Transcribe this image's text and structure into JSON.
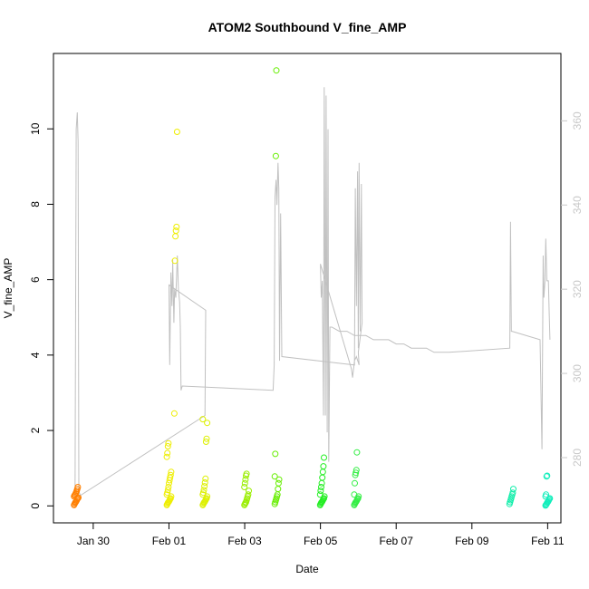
{
  "chart_data": {
    "type": "scatter",
    "title": "ATOM2 Southbound V_fine_AMP",
    "xlabel": "Date",
    "ylabel": "V_fine_AMP",
    "x_ticks": [
      "Jan 30",
      "Feb 01",
      "Feb 03",
      "Feb 05",
      "Feb 07",
      "Feb 09",
      "Feb 11"
    ],
    "x_tick_days": [
      1,
      3,
      5,
      7,
      9,
      11,
      13
    ],
    "x_range_days": [
      -0.05,
      13.35
    ],
    "x_day_zero": "Jan 29",
    "y_ticks": [
      0,
      2,
      4,
      6,
      8,
      10
    ],
    "ylim": [
      -0.45,
      12.0
    ],
    "y2_ticks": [
      280,
      300,
      320,
      340,
      360
    ],
    "y2lim": [
      264.5,
      376.0
    ],
    "grid": false,
    "legend": "none",
    "series": [
      {
        "kind": "points",
        "axis": "left",
        "clusters": [
          {
            "day": 0.55,
            "color": "#FF7F00",
            "values": [
              0.02,
              0.05,
              0.08,
              0.1,
              0.12,
              0.15,
              0.18,
              0.2,
              0.22,
              0.25,
              0.28,
              0.3,
              0.33,
              0.36,
              0.4,
              0.45,
              0.5
            ]
          },
          {
            "day": 3.0,
            "color": "#EEEE00",
            "values": [
              0.02,
              0.05,
              0.08,
              0.1,
              0.12,
              0.15,
              0.18,
              0.2,
              0.25,
              0.3,
              0.35,
              0.42,
              0.5,
              0.6,
              0.68,
              0.75,
              0.82,
              0.9,
              1.3,
              1.4,
              1.58,
              1.66
            ]
          },
          {
            "day": 3.2,
            "color": "#EEEE00",
            "values": [
              2.45,
              6.5,
              7.15,
              7.3,
              7.4,
              9.92
            ]
          },
          {
            "day": 3.95,
            "color": "#DDF000",
            "values": [
              0.02,
              0.05,
              0.08,
              0.1,
              0.12,
              0.15,
              0.18,
              0.2,
              0.25,
              0.3,
              0.35,
              0.42,
              0.52,
              0.62,
              0.72,
              1.7,
              1.78,
              2.2,
              2.3
            ]
          },
          {
            "day": 5.05,
            "color": "#99EE00",
            "values": [
              0.02,
              0.05,
              0.08,
              0.1,
              0.15,
              0.2,
              0.25,
              0.3,
              0.4,
              0.5,
              0.6,
              0.7,
              0.8,
              0.85
            ]
          },
          {
            "day": 5.85,
            "color": "#66EE00",
            "values": [
              0.05,
              0.1,
              0.15,
              0.2,
              0.25,
              0.3,
              0.45,
              0.6,
              0.7,
              0.78,
              1.38,
              9.28,
              11.55
            ]
          },
          {
            "day": 7.05,
            "color": "#22EE22",
            "values": [
              0.02,
              0.05,
              0.08,
              0.1,
              0.12,
              0.15,
              0.18,
              0.2,
              0.25,
              0.3,
              0.4,
              0.5,
              0.6,
              0.75,
              0.9,
              1.05,
              1.28
            ]
          },
          {
            "day": 7.95,
            "color": "#33EE44",
            "values": [
              0.02,
              0.05,
              0.08,
              0.1,
              0.12,
              0.15,
              0.18,
              0.2,
              0.25,
              0.3,
              0.6,
              0.82,
              0.88,
              0.95,
              1.42
            ]
          },
          {
            "day": 12.05,
            "color": "#11EEAA",
            "values": [
              0.05,
              0.1,
              0.15,
              0.2,
              0.25,
              0.3,
              0.35,
              0.45
            ]
          },
          {
            "day": 13.0,
            "color": "#11EEBB",
            "values": [
              0.01,
              0.03,
              0.05,
              0.08,
              0.1,
              0.12,
              0.15,
              0.18,
              0.2,
              0.25,
              0.3,
              0.78,
              0.8
            ]
          }
        ]
      },
      {
        "kind": "line",
        "axis": "right",
        "color": "#c0c0c0",
        "points": [
          [
            0.52,
            270
          ],
          [
            0.55,
            358
          ],
          [
            0.58,
            362
          ],
          [
            0.6,
            355
          ],
          [
            0.62,
            272
          ],
          [
            0.66,
            271
          ],
          [
            3.95,
            290
          ],
          [
            3.97,
            315
          ],
          [
            3.0,
            321
          ],
          [
            3.02,
            302
          ],
          [
            3.05,
            324
          ],
          [
            3.08,
            316
          ],
          [
            3.1,
            327
          ],
          [
            3.13,
            312
          ],
          [
            3.15,
            320
          ],
          [
            3.18,
            318
          ],
          [
            3.22,
            328
          ],
          [
            3.25,
            320
          ],
          [
            3.28,
            317
          ],
          [
            3.3,
            311
          ],
          [
            3.32,
            296
          ],
          [
            3.35,
            297
          ],
          [
            5.75,
            296
          ],
          [
            5.78,
            302
          ],
          [
            5.8,
            342
          ],
          [
            5.83,
            346
          ],
          [
            5.85,
            340
          ],
          [
            5.88,
            350
          ],
          [
            5.9,
            344
          ],
          [
            5.92,
            303
          ],
          [
            5.95,
            338
          ],
          [
            5.98,
            304
          ],
          [
            7.9,
            302
          ],
          [
            7.92,
            344
          ],
          [
            7.95,
            316
          ],
          [
            7.98,
            348
          ],
          [
            8.0,
            306
          ],
          [
            8.02,
            350
          ],
          [
            8.05,
            310
          ],
          [
            8.08,
            345
          ],
          [
            8.1,
            312
          ],
          [
            8.0,
            305
          ],
          [
            8.02,
            302
          ],
          [
            7.95,
            304
          ],
          [
            7.9,
            303
          ],
          [
            7.85,
            299
          ],
          [
            7.82,
            301
          ],
          [
            7.0,
            326
          ],
          [
            7.02,
            318
          ],
          [
            7.05,
            322
          ],
          [
            7.08,
            290
          ],
          [
            7.1,
            368
          ],
          [
            7.13,
            290
          ],
          [
            7.15,
            366
          ],
          [
            7.18,
            286
          ],
          [
            7.2,
            358
          ],
          [
            7.22,
            279
          ],
          [
            7.25,
            311
          ],
          [
            7.3,
            311
          ],
          [
            7.5,
            310
          ],
          [
            7.7,
            310
          ],
          [
            7.9,
            309
          ],
          [
            8.0,
            309
          ],
          [
            8.2,
            309
          ],
          [
            8.4,
            308
          ],
          [
            8.6,
            308
          ],
          [
            8.8,
            308
          ],
          [
            9.0,
            307
          ],
          [
            9.2,
            307
          ],
          [
            9.4,
            306
          ],
          [
            9.6,
            306
          ],
          [
            9.8,
            306
          ],
          [
            10.0,
            305
          ],
          [
            10.2,
            305
          ],
          [
            10.4,
            305
          ],
          [
            12.0,
            306
          ],
          [
            12.02,
            336
          ],
          [
            12.04,
            310
          ],
          [
            12.06,
            310
          ],
          [
            12.8,
            308
          ],
          [
            12.85,
            282
          ],
          [
            12.88,
            328
          ],
          [
            12.9,
            318
          ],
          [
            12.93,
            322
          ],
          [
            12.95,
            332
          ],
          [
            12.98,
            322
          ],
          [
            13.02,
            322
          ],
          [
            13.04,
            315
          ],
          [
            13.06,
            308
          ]
        ]
      }
    ]
  }
}
